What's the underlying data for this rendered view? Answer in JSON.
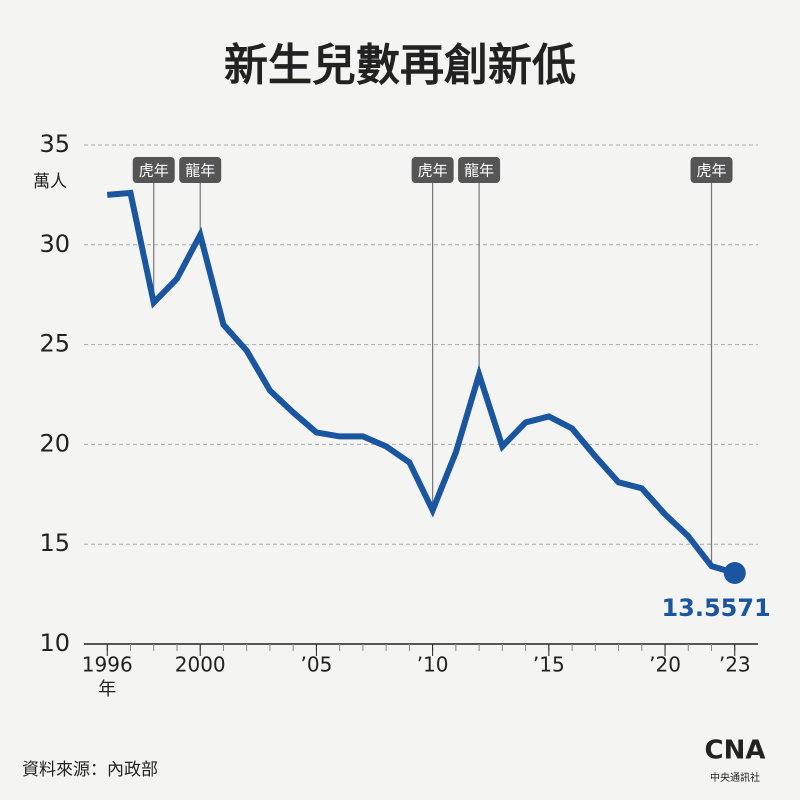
{
  "chart_data": {
    "type": "line",
    "title": "新生兒數再創新低",
    "y_unit": "萬人",
    "x_unit": "年",
    "x": [
      1996,
      1997,
      1998,
      1999,
      2000,
      2001,
      2002,
      2003,
      2004,
      2005,
      2006,
      2007,
      2008,
      2009,
      2010,
      2011,
      2012,
      2013,
      2014,
      2015,
      2016,
      2017,
      2018,
      2019,
      2020,
      2021,
      2022,
      2023
    ],
    "series": [
      {
        "name": "新生兒數",
        "color": "#1a56a0",
        "values": [
          32.5,
          32.6,
          27.1,
          28.3,
          30.5,
          26.0,
          24.7,
          22.7,
          21.6,
          20.6,
          20.4,
          20.4,
          19.9,
          19.1,
          16.7,
          19.6,
          23.5,
          19.9,
          21.1,
          21.4,
          20.8,
          19.4,
          18.1,
          17.8,
          16.5,
          15.4,
          13.9,
          13.5571
        ]
      }
    ],
    "xlim": [
      1995,
      2024
    ],
    "xticks": [
      {
        "value": 1996,
        "label": "1996"
      },
      2000,
      {
        "value": 2005,
        "label": "’05"
      },
      {
        "value": 2010,
        "label": "’10"
      },
      {
        "value": 2015,
        "label": "’15"
      },
      {
        "value": 2020,
        "label": "’20"
      },
      {
        "value": 2023,
        "label": "’23"
      }
    ],
    "ylim": [
      10,
      35
    ],
    "yticks": [
      10,
      15,
      20,
      25,
      30,
      35
    ],
    "grid": true,
    "annotations": [
      {
        "x": 1998,
        "label": "虎年"
      },
      {
        "x": 2000,
        "label": "龍年"
      },
      {
        "x": 2010,
        "label": "虎年"
      },
      {
        "x": 2012,
        "label": "龍年"
      },
      {
        "x": 2022,
        "label": "虎年"
      }
    ],
    "source": "資料來源：內政部",
    "logo": {
      "mark": "CNA",
      "name": "中央通訊社"
    }
  }
}
